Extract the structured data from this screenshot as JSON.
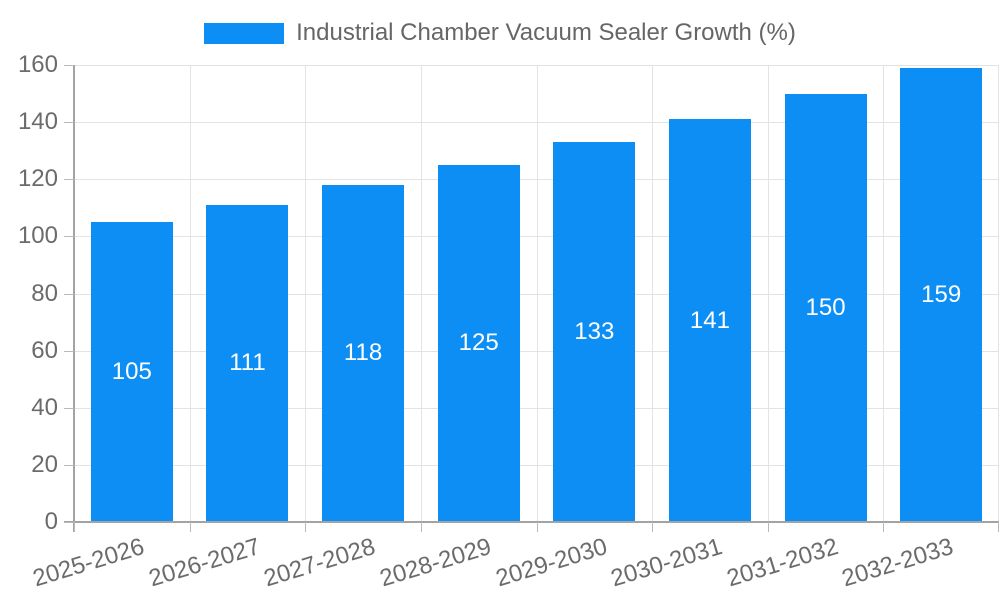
{
  "legend": {
    "position": "top",
    "label": "Industrial Chamber Vacuum Sealer Growth (%)"
  },
  "chart_data": {
    "type": "bar",
    "title": "Industrial Chamber Vacuum Sealer Growth (%)",
    "categories": [
      "2025-2026",
      "2026-2027",
      "2027-2028",
      "2028-2029",
      "2029-2030",
      "2030-2031",
      "2031-2032",
      "2032-2033"
    ],
    "values": [
      105,
      111,
      118,
      125,
      133,
      141,
      150,
      159
    ],
    "xlabel": "",
    "ylabel": "",
    "ylim": [
      0,
      160
    ],
    "yticks": [
      0,
      20,
      40,
      60,
      80,
      100,
      120,
      140,
      160
    ],
    "grid": true,
    "legend_position": "top",
    "bar_color": "#0d8ef5",
    "value_label_color": "#ffffff"
  },
  "colors": {
    "background": "#ffffff",
    "grid": "#e3e3e3",
    "axis": "#a3a3a3",
    "tick": "#b9b9b9",
    "tick_text": "#6b6b6b",
    "legend_text": "#666666"
  }
}
